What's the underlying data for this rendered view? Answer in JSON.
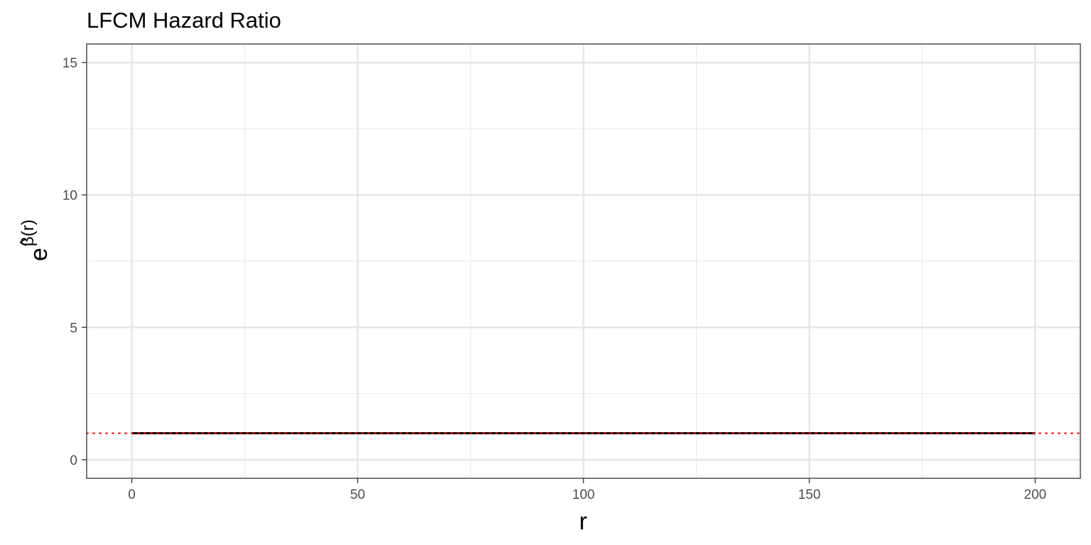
{
  "chart_data": {
    "type": "line",
    "title": "LFCM Hazard Ratio",
    "xlabel": "r",
    "ylabel": {
      "base": "e",
      "hat": "^",
      "exponent": "β(r)"
    },
    "xlim": [
      -10,
      210
    ],
    "ylim": [
      -0.7,
      15.7
    ],
    "x_ticks": [
      0,
      50,
      100,
      150,
      200
    ],
    "x_tick_labels": [
      "0",
      "50",
      "100",
      "150",
      "200"
    ],
    "y_ticks": [
      0,
      5,
      10,
      15
    ],
    "y_tick_labels": [
      "0",
      "5",
      "10",
      "15"
    ],
    "grid": true,
    "series": [
      {
        "x": [
          0,
          25,
          50,
          75,
          100,
          125,
          150,
          175,
          200
        ],
        "y": [
          1,
          1,
          1,
          1,
          1,
          1,
          1,
          1,
          1
        ],
        "color": "#000000",
        "style": "solid"
      }
    ],
    "reference_line": {
      "y": 1,
      "color": "#ff0000",
      "style": "dotted"
    }
  }
}
